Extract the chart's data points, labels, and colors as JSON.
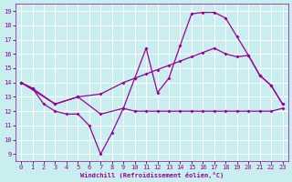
{
  "xlabel": "Windchill (Refroidissement éolien,°C)",
  "background_color": "#c8eef0",
  "grid_color": "#ffffff",
  "line_color": "#990099",
  "x_ticks": [
    0,
    1,
    2,
    3,
    4,
    5,
    6,
    7,
    8,
    9,
    10,
    11,
    12,
    13,
    14,
    15,
    16,
    17,
    18,
    19,
    20,
    21,
    22,
    23
  ],
  "y_ticks": [
    9,
    10,
    11,
    12,
    13,
    14,
    15,
    16,
    17,
    18,
    19
  ],
  "xlim": [
    -0.5,
    23.5
  ],
  "ylim": [
    8.5,
    19.5
  ],
  "line1_x": [
    0,
    1,
    2,
    3,
    4,
    5,
    6,
    7,
    8,
    9,
    10,
    11,
    12,
    13,
    14,
    15,
    16,
    17,
    18,
    19,
    20,
    21,
    22,
    23
  ],
  "line1_y": [
    14.0,
    13.6,
    12.5,
    12.0,
    11.8,
    11.8,
    11.0,
    9.0,
    10.5,
    12.2,
    12.0,
    12.0,
    12.0,
    12.0,
    12.0,
    12.0,
    12.0,
    12.0,
    12.0,
    12.0,
    12.0,
    12.0,
    12.0,
    12.2
  ],
  "line2_x": [
    0,
    1,
    3,
    5,
    7,
    9,
    10,
    11,
    12,
    13,
    14,
    15,
    16,
    17,
    18,
    19,
    20,
    21,
    22,
    23
  ],
  "line2_y": [
    14.0,
    13.6,
    12.5,
    13.0,
    13.2,
    14.0,
    14.3,
    14.6,
    14.9,
    15.2,
    15.5,
    15.8,
    16.1,
    16.4,
    16.0,
    15.8,
    15.9,
    14.5,
    13.8,
    12.5
  ],
  "line3_x": [
    0,
    3,
    5,
    7,
    9,
    10,
    11,
    12,
    13,
    14,
    15,
    16,
    17,
    18,
    19,
    20,
    21,
    22,
    23
  ],
  "line3_y": [
    14.0,
    12.5,
    13.0,
    11.8,
    12.2,
    14.3,
    16.4,
    13.3,
    14.3,
    16.6,
    18.8,
    18.9,
    18.9,
    18.5,
    17.2,
    15.9,
    14.5,
    13.8,
    12.5
  ]
}
